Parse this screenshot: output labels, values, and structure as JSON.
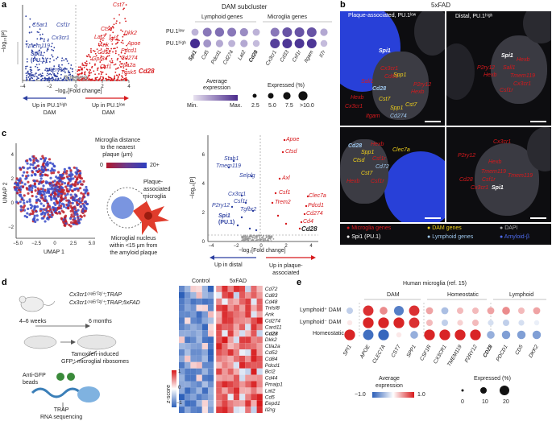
{
  "panels": {
    "a": {
      "label": "a",
      "volcano": {
        "ylabel": "−log₁₀[P]",
        "xlabel": "−log₂[Fold change]",
        "xticks": [
          "−4",
          "−2",
          "0",
          "2",
          "4"
        ],
        "left_caption": [
          "Up in PU.1ʰⁱᵍʰ",
          "DAM"
        ],
        "right_caption": [
          "Up in PU.1ˡᵒʷ",
          "DAM"
        ],
        "blue_genes": [
          "C5ar1",
          "Csf1r",
          "Cx3cr1",
          "Tmem119",
          "Spi1",
          "(PU.1)",
          "P2ry12",
          "Tnf"
        ],
        "red_genes": [
          "Cst7",
          "Dkk2",
          "Ctsd",
          "Lat2",
          "Igf1",
          "Apoe",
          "Ank",
          "Pdcd1",
          "Cd52",
          "Cd274",
          "Gpr84",
          "Ctla2a",
          "Cd28",
          "Csf1",
          "Tgsk5"
        ]
      },
      "dotplot": {
        "title": "DAM subcluster",
        "groups": [
          "Lymphoid genes",
          "Microglia genes"
        ],
        "rows": [
          "PU.1ˡᵒʷ",
          "PU.1ʰⁱᵍʰ"
        ],
        "genes": [
          "Spi1",
          "Cd5",
          "Pdcd1",
          "Cd274",
          "Lat2",
          "Cd28",
          "Cx3cr1",
          "Cd33",
          "Csf1r",
          "Itgam",
          "Il7r"
        ],
        "expr_low": [
          0.25,
          0.55,
          0.6,
          0.55,
          0.45,
          0.25,
          0.55,
          0.75,
          0.75,
          0.75,
          0.3
        ],
        "expr_high": [
          0.95,
          0.4,
          0.3,
          0.25,
          0.3,
          0.2,
          0.85,
          0.9,
          0.9,
          0.9,
          0.2
        ],
        "avg_title": [
          "Average",
          "expression"
        ],
        "avg_min": "Min.",
        "avg_max": "Max.",
        "size_title": "Expressed (%)",
        "size_labels": [
          "2.5",
          "5.0",
          "7.5",
          ">10.0"
        ]
      }
    },
    "b": {
      "label": "b",
      "title": "5xFAD",
      "left_title": "Plaque-associated, PU.1ˡᵒʷ",
      "right_title": "Distal, PU.1ʰⁱᵍʰ",
      "tl_labels": [
        "Spi1",
        "Cx3cr1",
        "Cd63",
        "P2ry12",
        "Sall1",
        "Hexb",
        "Cd28",
        "Cst7",
        "Spp1",
        "Cd274",
        "Hexb",
        "Itgam",
        "Cx3cr1",
        "Spp1",
        "Cst7"
      ],
      "tr_labels": [
        "Spi1",
        "P2ry12",
        "Hexb",
        "Sall1",
        "Hexb",
        "Tmem119",
        "Cx3cr1",
        "Csf1r"
      ],
      "bl_labels": [
        "Cd28",
        "Hexb",
        "Clec7a",
        "Spp1",
        "Csf1r",
        "Ctsd",
        "Cd72",
        "Cst7",
        "Hexb",
        "Csf1r"
      ],
      "br_labels": [
        "Cx3cr1",
        "P2ry12",
        "Hexb",
        "Tmem119",
        "Csf1r",
        "Cx3cr1",
        "Cd28",
        "Spi1",
        "Tmem119"
      ],
      "legend": [
        "Microglia genes",
        "DAM genes",
        "DAPI",
        "Spi1 (PU.1)",
        "Lymphoid genes",
        "Amyloid-β"
      ]
    },
    "c": {
      "label": "c",
      "umap": {
        "xlabel": "UMAP 1",
        "ylabel": "UMAP 2",
        "xticks": [
          "−5.0",
          "−2.5",
          "0",
          "2.5",
          "5.0"
        ],
        "yticks": [
          "−2",
          "0",
          "2",
          "4"
        ]
      },
      "distance_legend": [
        "Microglia distance",
        "to the nearest",
        "plaque (μm)"
      ],
      "distance_ticks": [
        "0",
        "20+"
      ],
      "cell_caption": [
        "Plaque-",
        "associated",
        "microglia"
      ],
      "nucleus_caption": [
        "Microglial nucleus",
        "within <15 μm from",
        "the amyloid plaque"
      ],
      "volcano": {
        "ylabel": "−log₁₀[P]",
        "xlabel": "−log₂[Fold change]",
        "xticks": [
          "−4",
          "−2",
          "0",
          "2",
          "4"
        ],
        "yticks": [
          "0",
          "2",
          "4",
          "6"
        ],
        "left_caption": "Up in distal",
        "right_caption": [
          "Up in plaque-",
          "associated"
        ],
        "blue_genes": [
          "Stab1",
          "Tmem119",
          "Selplg",
          "Cx3cr1",
          "P2ry12",
          "Csf1r",
          "Tgfbr2",
          "Spi1",
          "(PU.1)"
        ],
        "red_genes": [
          "Apoe",
          "Ctsd",
          "Axl",
          "Csf1",
          "Clec7a",
          "Trem2",
          "Pdcd1",
          "Cd274",
          "Cd4",
          "Cd28"
        ]
      }
    },
    "d": {
      "label": "d",
      "mouse_lines": [
        "Cx3cr1ᶜʳᵉᴱʳᵀ²/⁺;TRAP",
        "Cx3cr1ᶜʳᵉᴱʳᵀ²/⁺;TRAP;5xFAD"
      ],
      "weeks": "4–6 weeks",
      "months": "6 months",
      "tamoxifen": [
        "Tamoxifen-induced",
        "GFP⁺ microglial ribosomes"
      ],
      "beads": [
        "Anti-GFP",
        "beads"
      ],
      "seq": [
        "TRAP",
        "RNA sequencing"
      ],
      "heatmap_cols": [
        "Control",
        "5xFAD"
      ],
      "heatmap_genes": [
        "Cd72",
        "Cd83",
        "Cd48",
        "Tnfsf8",
        "Ank",
        "Cd274",
        "Card11",
        "Cd28",
        "Dkk2",
        "Ctla2a",
        "Cd52",
        "Cd84",
        "Pdcd1",
        "Bcl2",
        "Cd44",
        "Pmaip1",
        "Lat2",
        "Cd5",
        "Eepd1",
        "Il2rg"
      ],
      "zscore_label": "z-score",
      "zscore_ticks": [
        "1",
        "0",
        "−1"
      ]
    },
    "e": {
      "label": "e",
      "title": "Human microglia (ref. 15)",
      "groups": [
        "DAM",
        "Homeostatic",
        "Lymphoid"
      ],
      "rows": [
        "Lymphoid⁺ DAM",
        "Lymphoid⁻ DAM",
        "Homeostatic"
      ],
      "genes": [
        "SPI1",
        "APOE",
        "CLEC7A",
        "CST7",
        "SPP1",
        "CSF1R",
        "CX3CR1",
        "TMEM119",
        "P2RY12",
        "CD28",
        "PDCD1",
        "CD5",
        "DKK2"
      ],
      "values": [
        [
          -0.3,
          0.9,
          0.5,
          -0.8,
          0.9,
          0.4,
          -0.4,
          0.3,
          0.3,
          0.4,
          0.5,
          0.3,
          0.4
        ],
        [
          0.1,
          0.95,
          0.95,
          0.95,
          0.9,
          0.3,
          -0.3,
          0.2,
          0.3,
          -0.2,
          -0.3,
          -0.2,
          -0.1
        ],
        [
          0.95,
          -0.9,
          -0.95,
          0.1,
          -0.5,
          0.95,
          0.95,
          0.95,
          0.95,
          -0.5,
          -0.6,
          -0.6,
          -0.6
        ]
      ],
      "colorbar_title": [
        "Average",
        "expression"
      ],
      "colorbar_ticks": [
        "−1.0",
        "1.0"
      ],
      "size_title": "Expressed (%)",
      "size_labels": [
        "0",
        "10",
        "20"
      ]
    }
  },
  "colors": {
    "red": "#d7191c",
    "blue": "#2c3fa0",
    "yellow": "#f2d21b",
    "cyan": "#9fc8ee"
  }
}
